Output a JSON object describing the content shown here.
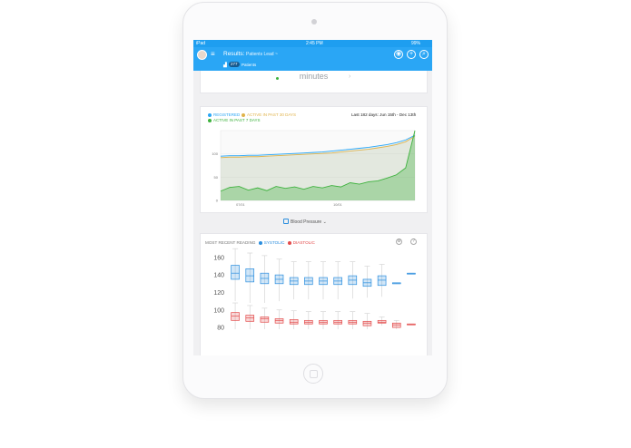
{
  "status_bar": {
    "carrier": "iPad",
    "time": "2:45 PM",
    "battery": "99%"
  },
  "header": {
    "menu_glyph": "≡",
    "title": "Results:",
    "subtitle": "Patients Lead ~",
    "count_badge": "277",
    "count_label": "Patients",
    "icons": [
      "eye-icon",
      "plus-icon",
      "search-icon"
    ],
    "icon_glyphs": [
      "◉",
      "+",
      "⌕"
    ],
    "cart_glyph": "▟"
  },
  "stat_card": {
    "label": "minutes",
    "chevron": "›"
  },
  "activity_chart": {
    "legend": [
      {
        "label": "REGISTERED",
        "color": "#2aa6f5"
      },
      {
        "label": "ACTIVE IN PAST 30 DAYS",
        "color": "#e0b34a"
      },
      {
        "label": "ACTIVE IN PAST 7 DAYS",
        "color": "#3eb23e"
      }
    ],
    "date_range": "Last 182 days: Jun 15th - Dec 13th"
  },
  "metric_selector": {
    "label": "Blood Pressure",
    "chevron": "⌄"
  },
  "bp_chart": {
    "header_label": "MOST RECENT READING",
    "systolic_label": "SYSTOLIC",
    "diastolic_label": "DIASTOLIC",
    "systolic_color": "#2b8ede",
    "diastolic_color": "#e34b4b",
    "settings_glyph": "⚙",
    "help_glyph": "?"
  },
  "chart_data": [
    {
      "type": "area",
      "title": "",
      "x": [
        0,
        1,
        2,
        3,
        4,
        5,
        6,
        7,
        8,
        9,
        10,
        11,
        12,
        13,
        14,
        15,
        16,
        17,
        18,
        19,
        20,
        21
      ],
      "x_ticks": [
        "07/01",
        "10/01"
      ],
      "y_ticks": [
        "0",
        "50",
        "100"
      ],
      "ylim": [
        0,
        150
      ],
      "series": [
        {
          "name": "REGISTERED",
          "color": "#2aa6f5",
          "values": [
            95,
            96,
            96,
            97,
            97,
            98,
            99,
            100,
            101,
            102,
            103,
            104,
            106,
            108,
            110,
            112,
            114,
            117,
            120,
            124,
            130,
            140
          ]
        },
        {
          "name": "ACTIVE IN PAST 30 DAYS",
          "color": "#e0b34a",
          "values": [
            92,
            93,
            93,
            94,
            94,
            95,
            96,
            97,
            98,
            99,
            100,
            101,
            102,
            104,
            106,
            108,
            110,
            113,
            116,
            120,
            126,
            138
          ]
        },
        {
          "name": "ACTIVE IN PAST 7 DAYS",
          "color": "#3eb23e",
          "values": [
            20,
            28,
            30,
            22,
            27,
            21,
            30,
            26,
            29,
            24,
            30,
            27,
            32,
            29,
            38,
            35,
            40,
            42,
            48,
            55,
            70,
            150
          ]
        }
      ],
      "grid": true,
      "legend": "top-left"
    },
    {
      "type": "box",
      "y_ticks": [
        "80",
        "100",
        "120",
        "140",
        "160"
      ],
      "ylim": [
        78,
        165
      ],
      "series": [
        {
          "name": "SYSTOLIC",
          "color": "#2b8ede",
          "boxes": [
            {
              "q1": 135,
              "median": 142,
              "q3": 151,
              "lo": 110,
              "hi": 170
            },
            {
              "q1": 132,
              "median": 139,
              "q3": 147,
              "lo": 108,
              "hi": 165
            },
            {
              "q1": 130,
              "median": 136,
              "q3": 142,
              "lo": 108,
              "hi": 162
            },
            {
              "q1": 130,
              "median": 135,
              "q3": 140,
              "lo": 110,
              "hi": 158
            },
            {
              "q1": 129,
              "median": 133,
              "q3": 137,
              "lo": 112,
              "hi": 155
            },
            {
              "q1": 129,
              "median": 133,
              "q3": 137,
              "lo": 112,
              "hi": 155
            },
            {
              "q1": 129,
              "median": 133,
              "q3": 137,
              "lo": 112,
              "hi": 155
            },
            {
              "q1": 129,
              "median": 133,
              "q3": 137,
              "lo": 112,
              "hi": 155
            },
            {
              "q1": 129,
              "median": 134,
              "q3": 139,
              "lo": 113,
              "hi": 155
            },
            {
              "q1": 127,
              "median": 131,
              "q3": 135,
              "lo": 114,
              "hi": 150
            },
            {
              "q1": 128,
              "median": 134,
              "q3": 139,
              "lo": 115,
              "hi": 152
            },
            {
              "q1": 130,
              "median": 130,
              "q3": 131,
              "lo": 130,
              "hi": 131
            },
            {
              "q1": 141,
              "median": 141,
              "q3": 142,
              "lo": 141,
              "hi": 142
            }
          ]
        },
        {
          "name": "DIASTOLIC",
          "color": "#e34b4b",
          "boxes": [
            {
              "q1": 88,
              "median": 93,
              "q3": 97,
              "lo": 78,
              "hi": 108
            },
            {
              "q1": 87,
              "median": 91,
              "q3": 94,
              "lo": 78,
              "hi": 105
            },
            {
              "q1": 86,
              "median": 90,
              "q3": 92,
              "lo": 78,
              "hi": 102
            },
            {
              "q1": 85,
              "median": 88,
              "q3": 90,
              "lo": 78,
              "hi": 100
            },
            {
              "q1": 84,
              "median": 86,
              "q3": 89,
              "lo": 78,
              "hi": 99
            },
            {
              "q1": 84,
              "median": 86,
              "q3": 88,
              "lo": 78,
              "hi": 98
            },
            {
              "q1": 84,
              "median": 86,
              "q3": 88,
              "lo": 78,
              "hi": 98
            },
            {
              "q1": 84,
              "median": 86,
              "q3": 88,
              "lo": 78,
              "hi": 98
            },
            {
              "q1": 84,
              "median": 86,
              "q3": 88,
              "lo": 78,
              "hi": 98
            },
            {
              "q1": 82,
              "median": 85,
              "q3": 87,
              "lo": 78,
              "hi": 96
            },
            {
              "q1": 85,
              "median": 86,
              "q3": 88,
              "lo": 82,
              "hi": 92
            },
            {
              "q1": 80,
              "median": 83,
              "q3": 85,
              "lo": 78,
              "hi": 88
            },
            {
              "q1": 83,
              "median": 83,
              "q3": 84,
              "lo": 83,
              "hi": 84
            }
          ]
        }
      ]
    }
  ]
}
